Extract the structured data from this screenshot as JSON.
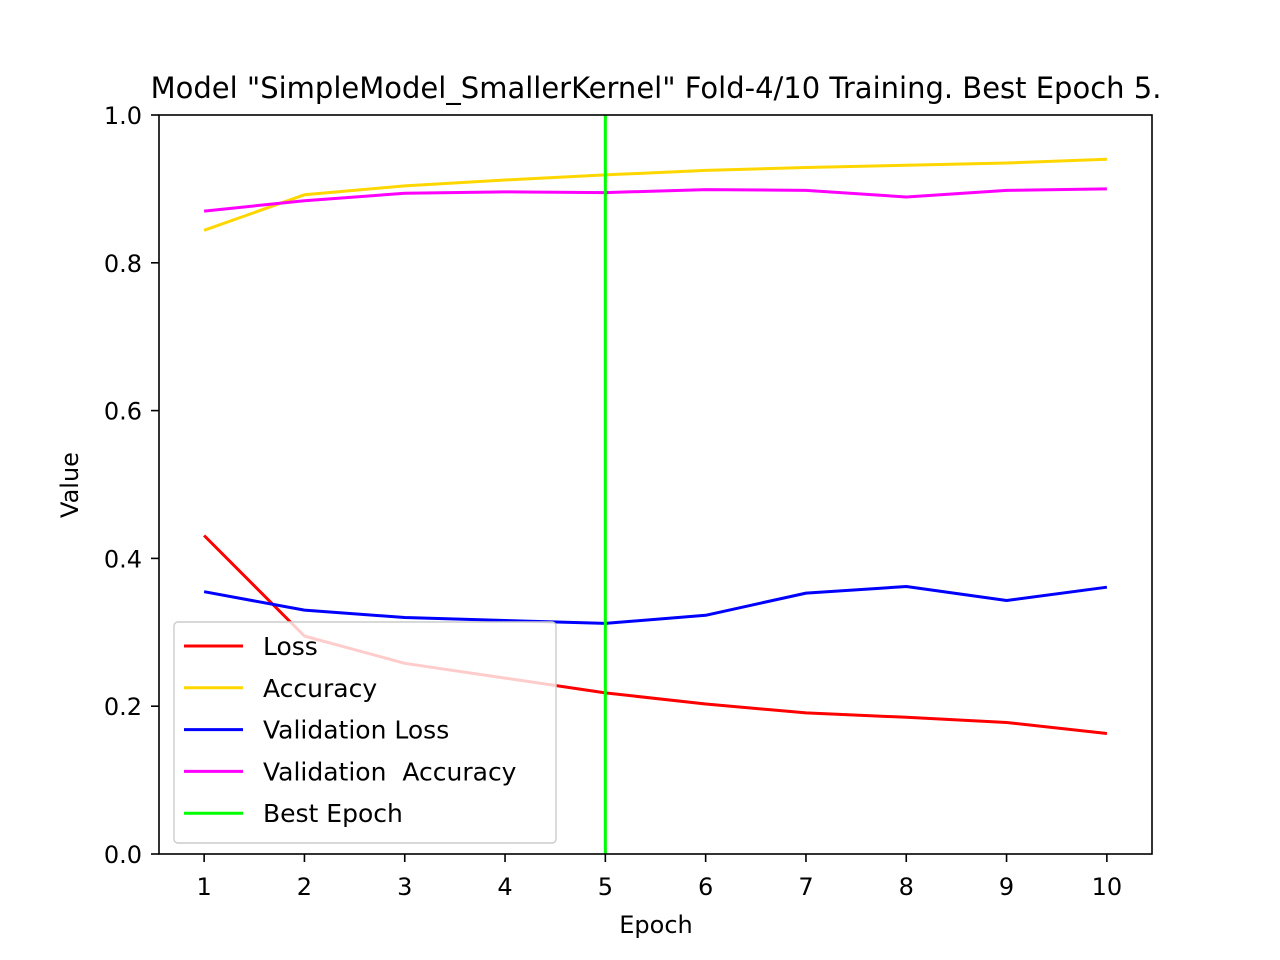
{
  "chart_data": {
    "type": "line",
    "title": "Model \"SimpleModel_SmallerKernel\" Fold-4/10 Training. Best Epoch 5.",
    "xlabel": "Epoch",
    "ylabel": "Value",
    "x": [
      1,
      2,
      3,
      4,
      5,
      6,
      7,
      8,
      9,
      10
    ],
    "xlim": [
      0.55,
      10.45
    ],
    "ylim": [
      0.0,
      1.0
    ],
    "xticks": [
      "1",
      "2",
      "3",
      "4",
      "5",
      "6",
      "7",
      "8",
      "9",
      "10"
    ],
    "yticks": [
      "0.0",
      "0.2",
      "0.4",
      "0.6",
      "0.8",
      "1.0"
    ],
    "grid": false,
    "legend_position": "lower-left",
    "series": [
      {
        "name": "Loss",
        "color": "#ff0000",
        "values": [
          0.431,
          0.295,
          0.258,
          0.238,
          0.218,
          0.203,
          0.191,
          0.185,
          0.178,
          0.163
        ]
      },
      {
        "name": "Accuracy",
        "color": "#ffd700",
        "values": [
          0.844,
          0.892,
          0.904,
          0.912,
          0.919,
          0.925,
          0.929,
          0.932,
          0.935,
          0.94
        ]
      },
      {
        "name": "Validation Loss",
        "color": "#0000ff",
        "values": [
          0.355,
          0.33,
          0.32,
          0.316,
          0.312,
          0.323,
          0.353,
          0.362,
          0.343,
          0.361
        ]
      },
      {
        "name": "Validation  Accuracy",
        "color": "#ff00ff",
        "values": [
          0.87,
          0.884,
          0.894,
          0.896,
          0.895,
          0.899,
          0.898,
          0.889,
          0.898,
          0.9
        ]
      }
    ],
    "best_epoch": {
      "name": "Best Epoch",
      "x": 5,
      "color": "#00ff00"
    }
  }
}
